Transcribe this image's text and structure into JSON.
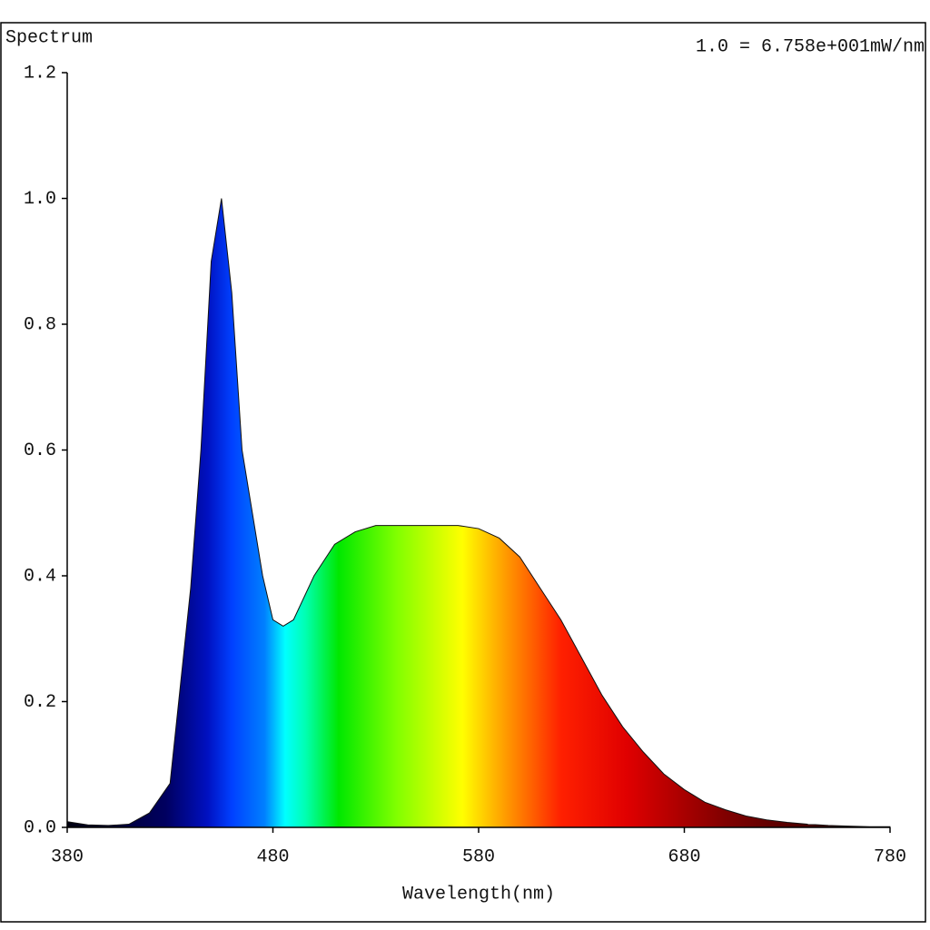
{
  "chart_data": {
    "type": "area",
    "title": "Spectrum",
    "annotation": "1.0 = 6.758e+001mW/nm",
    "x_label": "Wavelength(nm)",
    "x": [
      380,
      390,
      400,
      410,
      420,
      430,
      440,
      445,
      450,
      455,
      460,
      465,
      470,
      475,
      480,
      485,
      490,
      500,
      510,
      520,
      530,
      540,
      550,
      560,
      570,
      580,
      590,
      600,
      610,
      620,
      630,
      640,
      650,
      660,
      670,
      680,
      690,
      700,
      710,
      720,
      730,
      740,
      750,
      760,
      770,
      780
    ],
    "values": [
      0.009,
      0.004,
      0.003,
      0.005,
      0.023,
      0.07,
      0.38,
      0.6,
      0.9,
      1.0,
      0.85,
      0.6,
      0.5,
      0.4,
      0.33,
      0.32,
      0.33,
      0.4,
      0.45,
      0.47,
      0.48,
      0.48,
      0.48,
      0.48,
      0.48,
      0.475,
      0.46,
      0.43,
      0.38,
      0.33,
      0.27,
      0.21,
      0.16,
      0.12,
      0.085,
      0.06,
      0.04,
      0.028,
      0.018,
      0.012,
      0.008,
      0.005,
      0.003,
      0.002,
      0.001,
      0.001
    ],
    "xlim": [
      380,
      780
    ],
    "xticks": [
      380,
      480,
      580,
      680,
      780
    ],
    "ylim": [
      0,
      1.2
    ],
    "yticks": [
      {
        "value": 0,
        "label": "0.0"
      },
      0.2,
      0.4,
      0.6,
      0.8,
      {
        "value": 1,
        "label": "1.0"
      },
      1.2
    ]
  }
}
